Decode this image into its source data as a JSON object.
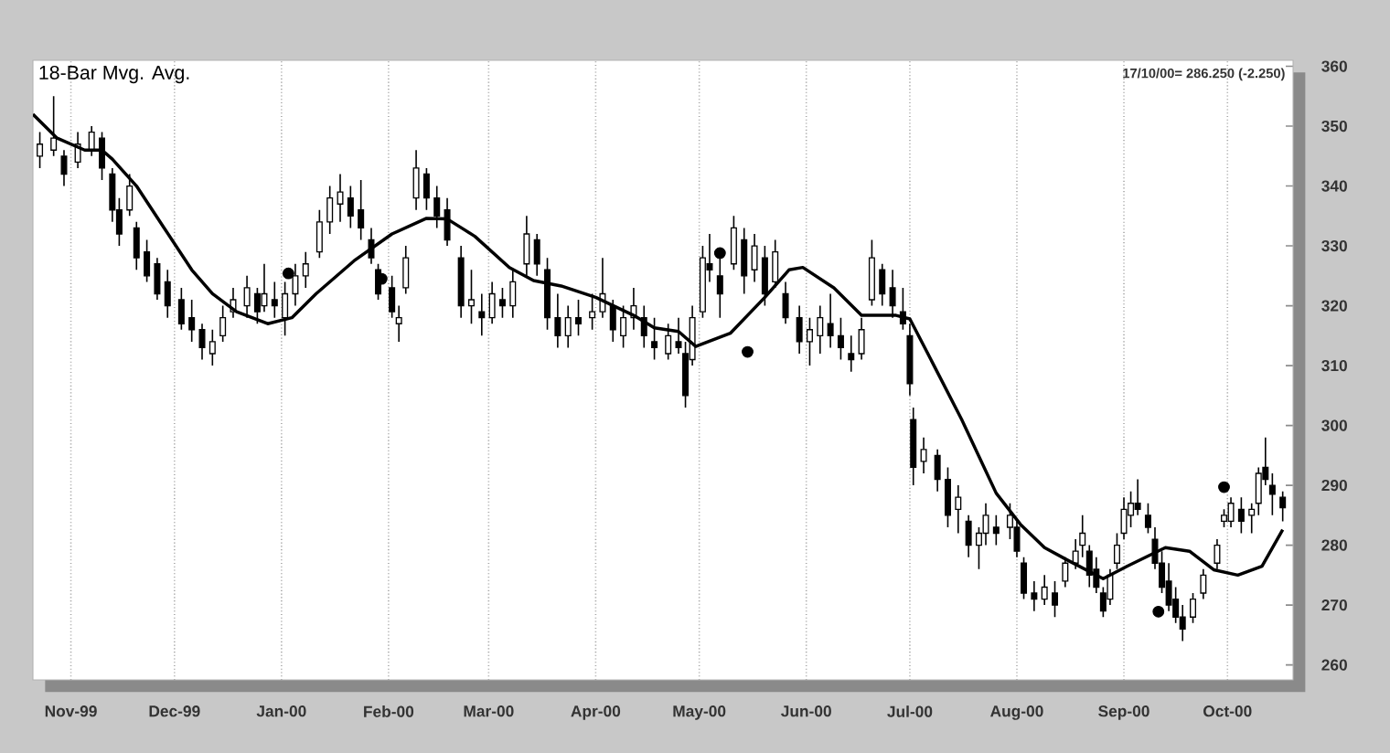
{
  "chart_data": {
    "type": "candlestick",
    "title": "18-Bar Mvg. Avg.",
    "annotations": [
      "17/10/00= 286.250 (-2.250)"
    ],
    "xlim": [
      "1999-10-21",
      "2000-10-20"
    ],
    "ylim": [
      257.5,
      361
    ],
    "xticks": [
      {
        "value": "1999-11-01",
        "label": "Nov-99"
      },
      {
        "value": "1999-12-01",
        "label": "Dec-99"
      },
      {
        "value": "2000-01-01",
        "label": "Jan-00"
      },
      {
        "value": "2000-02-01",
        "label": "Feb-00"
      },
      {
        "value": "2000-03-01",
        "label": "Mar-00"
      },
      {
        "value": "2000-04-01",
        "label": "Apr-00"
      },
      {
        "value": "2000-05-01",
        "label": "May-00"
      },
      {
        "value": "2000-06-01",
        "label": "Jun-00"
      },
      {
        "value": "2000-07-01",
        "label": "Jul-00"
      },
      {
        "value": "2000-08-01",
        "label": "Aug-00"
      },
      {
        "value": "2000-09-01",
        "label": "Sep-00"
      },
      {
        "value": "2000-10-01",
        "label": "Oct-00"
      }
    ],
    "yticks": [
      260,
      270,
      280,
      290,
      300,
      310,
      320,
      330,
      340,
      350,
      360
    ],
    "grid": "x",
    "color": "#000000",
    "x": [
      "1999-10-23",
      "1999-10-27",
      "1999-10-30",
      "1999-11-03",
      "1999-11-07",
      "1999-11-10",
      "1999-11-13",
      "1999-11-15",
      "1999-11-18",
      "1999-11-20",
      "1999-11-23",
      "1999-11-26",
      "1999-11-29",
      "1999-12-03",
      "1999-12-06",
      "1999-12-09",
      "1999-12-12",
      "1999-12-15",
      "1999-12-18",
      "1999-12-22",
      "1999-12-25",
      "1999-12-27",
      "1999-12-30",
      "2000-01-02",
      "2000-01-05",
      "2000-01-08",
      "2000-01-12",
      "2000-01-15",
      "2000-01-18",
      "2000-01-21",
      "2000-01-24",
      "2000-01-27",
      "2000-01-29",
      "2000-02-02",
      "2000-02-04",
      "2000-02-06",
      "2000-02-09",
      "2000-02-12",
      "2000-02-15",
      "2000-02-18",
      "2000-02-22",
      "2000-02-25",
      "2000-02-28",
      "2000-03-02",
      "2000-03-05",
      "2000-03-08",
      "2000-03-12",
      "2000-03-15",
      "2000-03-18",
      "2000-03-21",
      "2000-03-24",
      "2000-03-27",
      "2000-03-31",
      "2000-04-03",
      "2000-04-06",
      "2000-04-09",
      "2000-04-12",
      "2000-04-15",
      "2000-04-18",
      "2000-04-22",
      "2000-04-25",
      "2000-04-27",
      "2000-04-29",
      "2000-05-02",
      "2000-05-04",
      "2000-05-07",
      "2000-05-11",
      "2000-05-14",
      "2000-05-17",
      "2000-05-20",
      "2000-05-23",
      "2000-05-26",
      "2000-05-30",
      "2000-06-02",
      "2000-06-05",
      "2000-06-08",
      "2000-06-11",
      "2000-06-14",
      "2000-06-17",
      "2000-06-20",
      "2000-06-23",
      "2000-06-26",
      "2000-06-29",
      "2000-07-01",
      "2000-07-02",
      "2000-07-05",
      "2000-07-09",
      "2000-07-12",
      "2000-07-15",
      "2000-07-18",
      "2000-07-21",
      "2000-07-23",
      "2000-07-26",
      "2000-07-30",
      "2000-08-01",
      "2000-08-03",
      "2000-08-06",
      "2000-08-09",
      "2000-08-12",
      "2000-08-15",
      "2000-08-18",
      "2000-08-20",
      "2000-08-22",
      "2000-08-24",
      "2000-08-26",
      "2000-08-28",
      "2000-08-30",
      "2000-09-01",
      "2000-09-03",
      "2000-09-05",
      "2000-09-08",
      "2000-09-10",
      "2000-09-12",
      "2000-09-14",
      "2000-09-16",
      "2000-09-18",
      "2000-09-21",
      "2000-09-24",
      "2000-09-28",
      "2000-09-30",
      "2000-10-02",
      "2000-10-05",
      "2000-10-08",
      "2000-10-10",
      "2000-10-12",
      "2000-10-14",
      "2000-10-17"
    ],
    "ohlc": [
      [
        345,
        349,
        343,
        347
      ],
      [
        346,
        355,
        345,
        348
      ],
      [
        345,
        346,
        340,
        342
      ],
      [
        344,
        349,
        343,
        347
      ],
      [
        346,
        350,
        345,
        349
      ],
      [
        348,
        349,
        341,
        343
      ],
      [
        342,
        343,
        334,
        336
      ],
      [
        336,
        338,
        330,
        332
      ],
      [
        336,
        342,
        335,
        340
      ],
      [
        333,
        334,
        326,
        328
      ],
      [
        329,
        331,
        324,
        325
      ],
      [
        327,
        328,
        321,
        322
      ],
      [
        324,
        326,
        318,
        320
      ],
      [
        321,
        323,
        316,
        317
      ],
      [
        318,
        321,
        314,
        316
      ],
      [
        316,
        317,
        311,
        313
      ],
      [
        312,
        316,
        310,
        314
      ],
      [
        315,
        320,
        314,
        318
      ],
      [
        319,
        323,
        318,
        321
      ],
      [
        320,
        325,
        318,
        323
      ],
      [
        322,
        323,
        317,
        319
      ],
      [
        320,
        327,
        319,
        322
      ],
      [
        321,
        324,
        318,
        320
      ],
      [
        318,
        324,
        315,
        322
      ],
      [
        322,
        327,
        320,
        325
      ],
      [
        325,
        329,
        323,
        327
      ],
      [
        329,
        336,
        328,
        334
      ],
      [
        334,
        340,
        332,
        338
      ],
      [
        337,
        342,
        334,
        339
      ],
      [
        338,
        340,
        333,
        335
      ],
      [
        336,
        341,
        331,
        333
      ],
      [
        331,
        333,
        327,
        328
      ],
      [
        326,
        327,
        321,
        322
      ],
      [
        323,
        325,
        318,
        319
      ],
      [
        317,
        320,
        314,
        318
      ],
      [
        323,
        330,
        322,
        328
      ],
      [
        338,
        346,
        336,
        343
      ],
      [
        342,
        343,
        336,
        338
      ],
      [
        338,
        340,
        333,
        335
      ],
      [
        336,
        338,
        330,
        331
      ],
      [
        328,
        330,
        318,
        320
      ],
      [
        320,
        326,
        317,
        321
      ],
      [
        319,
        322,
        315,
        318
      ],
      [
        318,
        324,
        317,
        322
      ],
      [
        321,
        323,
        318,
        320
      ],
      [
        320,
        326,
        318,
        324
      ],
      [
        327,
        335,
        325,
        332
      ],
      [
        331,
        332,
        325,
        327
      ],
      [
        326,
        328,
        316,
        318
      ],
      [
        318,
        322,
        313,
        315
      ],
      [
        315,
        320,
        313,
        318
      ],
      [
        318,
        321,
        315,
        317
      ],
      [
        318,
        322,
        316,
        319
      ],
      [
        319,
        328,
        318,
        322
      ],
      [
        320,
        321,
        314,
        316
      ],
      [
        315,
        320,
        313,
        318
      ],
      [
        318,
        323,
        316,
        320
      ],
      [
        318,
        320,
        313,
        315
      ],
      [
        314,
        318,
        311,
        313
      ],
      [
        312,
        317,
        311,
        315
      ],
      [
        314,
        318,
        312,
        313
      ],
      [
        312,
        314,
        303,
        305
      ],
      [
        311,
        320,
        310,
        318
      ],
      [
        319,
        330,
        318,
        328
      ],
      [
        327,
        332,
        324,
        326
      ],
      [
        325,
        328,
        318,
        322
      ],
      [
        327,
        335,
        326,
        333
      ],
      [
        331,
        333,
        322,
        325
      ],
      [
        326,
        332,
        324,
        330
      ],
      [
        328,
        330,
        320,
        322
      ],
      [
        324,
        331,
        323,
        329
      ],
      [
        322,
        324,
        317,
        318
      ],
      [
        318,
        320,
        312,
        314
      ],
      [
        314,
        318,
        310,
        316
      ],
      [
        315,
        320,
        312,
        318
      ],
      [
        317,
        322,
        313,
        315
      ],
      [
        315,
        318,
        311,
        313
      ],
      [
        312,
        315,
        309,
        311
      ],
      [
        312,
        318,
        311,
        316
      ],
      [
        321,
        331,
        320,
        328
      ],
      [
        326,
        327,
        320,
        322
      ],
      [
        323,
        326,
        318,
        320
      ],
      [
        319,
        323,
        316,
        317
      ],
      [
        315,
        317,
        305,
        307
      ],
      [
        301,
        303,
        290,
        293
      ],
      [
        294,
        298,
        292,
        296
      ],
      [
        295,
        296,
        289,
        291
      ],
      [
        291,
        293,
        283,
        285
      ],
      [
        286,
        290,
        282,
        288
      ],
      [
        284,
        285,
        278,
        280
      ],
      [
        280,
        283,
        276,
        282
      ],
      [
        282,
        287,
        280,
        285
      ],
      [
        283,
        285,
        280,
        282
      ],
      [
        283,
        287,
        281,
        285
      ],
      [
        283,
        284,
        278,
        279
      ],
      [
        277,
        278,
        271,
        272
      ],
      [
        272,
        274,
        269,
        271
      ],
      [
        271,
        275,
        270,
        273
      ],
      [
        272,
        274,
        268,
        270
      ],
      [
        274,
        278,
        273,
        277
      ],
      [
        277,
        281,
        276,
        279
      ],
      [
        280,
        285,
        278,
        282
      ],
      [
        279,
        280,
        273,
        275
      ],
      [
        276,
        278,
        272,
        273
      ],
      [
        272,
        273,
        268,
        269
      ],
      [
        271,
        276,
        270,
        275
      ],
      [
        277,
        282,
        276,
        280
      ],
      [
        282,
        288,
        281,
        286
      ],
      [
        285,
        289,
        283,
        287
      ],
      [
        287,
        291,
        285,
        286
      ],
      [
        285,
        287,
        282,
        283
      ],
      [
        281,
        283,
        276,
        277
      ],
      [
        277,
        279,
        272,
        273
      ],
      [
        274,
        277,
        269,
        270
      ],
      [
        271,
        273,
        267,
        268
      ],
      [
        268,
        270,
        264,
        266
      ],
      [
        268,
        272,
        267,
        271
      ],
      [
        272,
        276,
        271,
        275
      ],
      [
        277,
        281,
        276,
        280
      ],
      [
        284,
        286,
        283,
        285
      ],
      [
        284,
        288,
        283,
        287
      ],
      [
        286,
        288,
        282,
        284
      ],
      [
        285,
        287,
        282,
        286
      ],
      [
        287,
        293,
        285,
        292
      ],
      [
        293,
        298,
        290,
        291
      ],
      [
        290,
        292,
        285,
        288.5
      ],
      [
        288,
        289,
        284,
        286.25
      ]
    ],
    "series": [
      {
        "type": "line",
        "color": "#000000",
        "line_style": "solid",
        "x": [
          "1999-10-21",
          "1999-10-28",
          "1999-11-05",
          "1999-11-10",
          "1999-11-13",
          "1999-11-20",
          "1999-11-28",
          "1999-12-06",
          "1999-12-12",
          "1999-12-19",
          "1999-12-28",
          "2000-01-04",
          "2000-01-11",
          "2000-01-22",
          "2000-02-02",
          "2000-02-12",
          "2000-02-18",
          "2000-02-26",
          "2000-03-07",
          "2000-03-14",
          "2000-03-22",
          "2000-04-01",
          "2000-04-12",
          "2000-04-18",
          "2000-04-25",
          "2000-04-30",
          "2000-05-10",
          "2000-05-20",
          "2000-05-27",
          "2000-05-31",
          "2000-06-09",
          "2000-06-17",
          "2000-06-27",
          "2000-07-01",
          "2000-07-08",
          "2000-07-16",
          "2000-07-26",
          "2000-08-02",
          "2000-08-09",
          "2000-08-16",
          "2000-08-26",
          "2000-09-02",
          "2000-09-13",
          "2000-09-20",
          "2000-09-27",
          "2000-10-04",
          "2000-10-11",
          "2000-10-17"
        ],
        "values": [
          352,
          348,
          346,
          346,
          344.5,
          340,
          333,
          326,
          322,
          319,
          317,
          318,
          322,
          327.5,
          332,
          334.6,
          334.5,
          331.6,
          326.4,
          324.2,
          323.3,
          321.4,
          318.4,
          316.3,
          315.7,
          313.2,
          315.4,
          321.4,
          326,
          326.4,
          323,
          318.4,
          318.4,
          317.8,
          310,
          301,
          288.7,
          283.5,
          279.6,
          277.4,
          274.4,
          276.5,
          279.6,
          279,
          275.9,
          275,
          276.5,
          282.6
        ]
      },
      {
        "type": "scatter",
        "color": "#000000",
        "marker": "circle",
        "x": [
          "2000-01-03",
          "2000-01-30",
          "2000-05-07",
          "2000-05-15",
          "2000-09-11",
          "2000-09-30"
        ],
        "values": [
          325.4,
          324.5,
          328.8,
          312.3,
          268.9,
          289.7
        ]
      }
    ]
  }
}
